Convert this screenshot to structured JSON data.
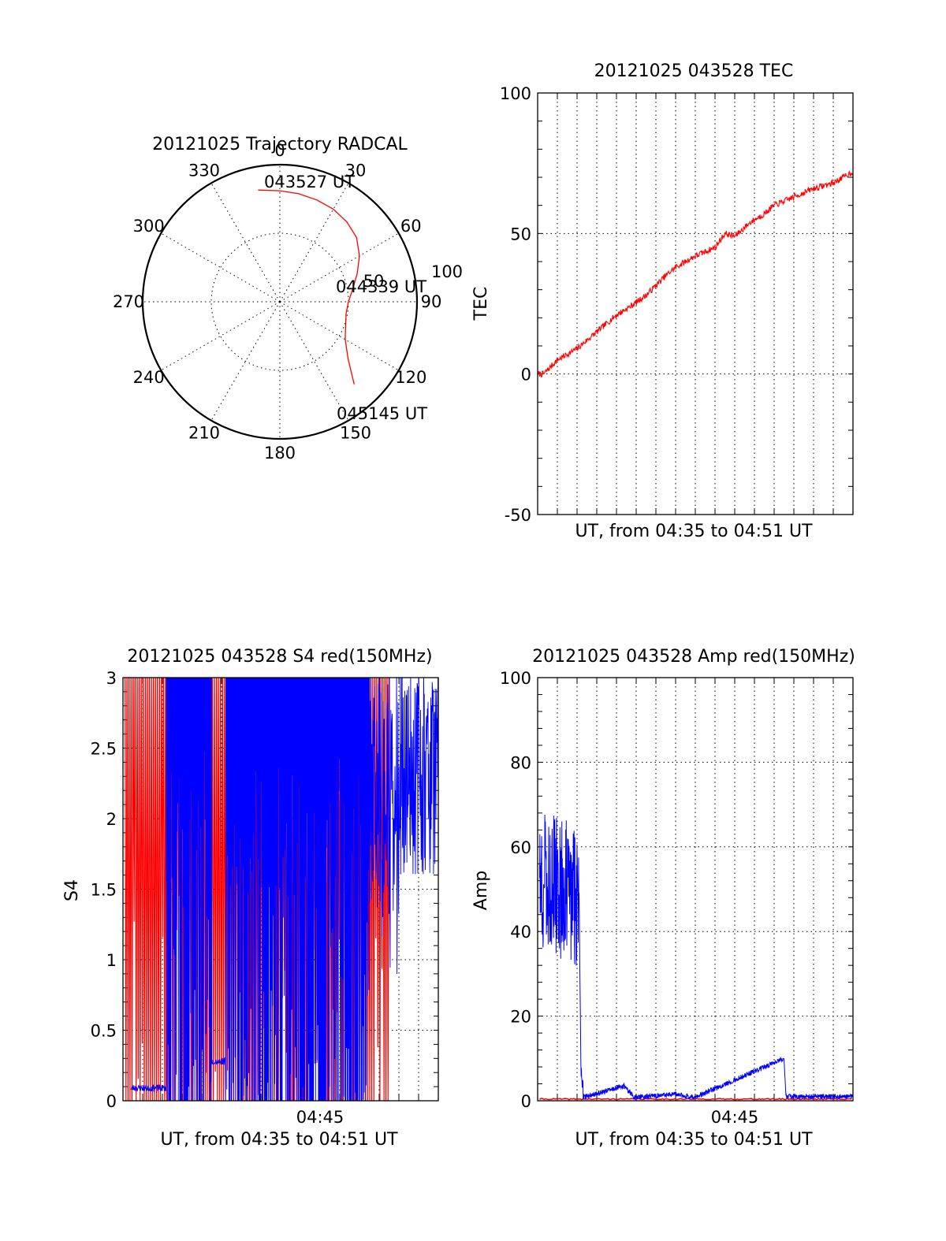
{
  "colors": {
    "red": "#ff0000",
    "blue": "#0000ff"
  },
  "chart_data": [
    {
      "type": "polar",
      "title": "20121025 Trajectory RADCAL",
      "angle_labels": [
        "0",
        "30",
        "60",
        "90",
        "120",
        "150",
        "180",
        "210",
        "240",
        "270",
        "300",
        "330"
      ],
      "radius_labels": [
        "50",
        "100"
      ],
      "rlim": [
        0,
        100
      ],
      "start_label": "043527 UT",
      "mid_label": "044339 UT",
      "end_label": "045145 UT",
      "series": [
        {
          "color": "#ff0000",
          "points": [
            {
              "azimuth": 349,
              "zenith": 83
            },
            {
              "azimuth": 0,
              "zenith": 81
            },
            {
              "azimuth": 10,
              "zenith": 80
            },
            {
              "azimuth": 20,
              "zenith": 79
            },
            {
              "azimuth": 30,
              "zenith": 78
            },
            {
              "azimuth": 40,
              "zenith": 76
            },
            {
              "azimuth": 50,
              "zenith": 73
            },
            {
              "azimuth": 60,
              "zenith": 67
            },
            {
              "azimuth": 70,
              "zenith": 60
            },
            {
              "azimuth": 80,
              "zenith": 54
            },
            {
              "azimuth": 90,
              "zenith": 50
            },
            {
              "azimuth": 100,
              "zenith": 49
            },
            {
              "azimuth": 110,
              "zenith": 51
            },
            {
              "azimuth": 120,
              "zenith": 55
            },
            {
              "azimuth": 130,
              "zenith": 65
            },
            {
              "azimuth": 138,
              "zenith": 81
            }
          ]
        }
      ]
    },
    {
      "type": "line",
      "title": "20121025 043528 TEC",
      "ylabel": "TEC",
      "xlabel": "UT, from 04:35 to 04:51 UT",
      "xlim": [
        0,
        16
      ],
      "ylim": [
        -50,
        100
      ],
      "yticks": [
        "-50",
        "0",
        "50",
        "100"
      ],
      "series": [
        {
          "color": "#ff0000",
          "x": [
            0,
            0.3,
            1,
            2,
            3,
            4,
            4.7,
            5.5,
            6.5,
            7,
            8,
            9,
            9.5,
            10,
            10.8,
            11.5,
            12,
            13,
            14,
            15,
            16
          ],
          "y": [
            0,
            0,
            5,
            9,
            15,
            21,
            24,
            28,
            35,
            38,
            42,
            45,
            50,
            49,
            54,
            57,
            60,
            63,
            66,
            68,
            72
          ]
        }
      ]
    },
    {
      "type": "line",
      "title": "20121025 043528 S4 red(150MHz)",
      "ylabel": "S4",
      "xlabel": "UT, from 04:35 to 04:51 UT",
      "xtick_labels": [
        "04:45"
      ],
      "xlim": [
        0,
        16
      ],
      "ylim": [
        0,
        3
      ],
      "yticks": [
        "0",
        "0.5",
        "1",
        "1.5",
        "2",
        "2.5",
        "3"
      ],
      "series": [
        {
          "color": "#ff0000",
          "x_range": [
            0.1,
            13.5
          ]
        },
        {
          "color": "#0000ff",
          "x_range": [
            0.4,
            16
          ],
          "baseline_segments": [
            {
              "x": [
                0.4,
                2.2
              ],
              "y": 0.09
            },
            {
              "x": [
                4.5,
                5.2
              ],
              "y": 0.28
            }
          ]
        }
      ]
    },
    {
      "type": "line",
      "title": "20121025 043528 Amp red(150MHz)",
      "ylabel": "Amp",
      "xlabel": "UT, from 04:35 to 04:51 UT",
      "xtick_labels": [
        "04:45"
      ],
      "xlim": [
        0,
        16
      ],
      "ylim": [
        0,
        100
      ],
      "yticks": [
        "0",
        "20",
        "40",
        "60",
        "80",
        "100"
      ],
      "series": [
        {
          "color": "#ff0000",
          "level": 0.4
        },
        {
          "color": "#0000ff",
          "x": [
            0.1,
            2.1,
            2.2,
            2.3,
            4.4,
            4.9,
            7,
            8,
            12.5,
            12.6,
            16
          ],
          "y": [
            52,
            48,
            6,
            0.8,
            3.5,
            0.8,
            1.5,
            0.8,
            10,
            1,
            1
          ]
        }
      ]
    }
  ]
}
